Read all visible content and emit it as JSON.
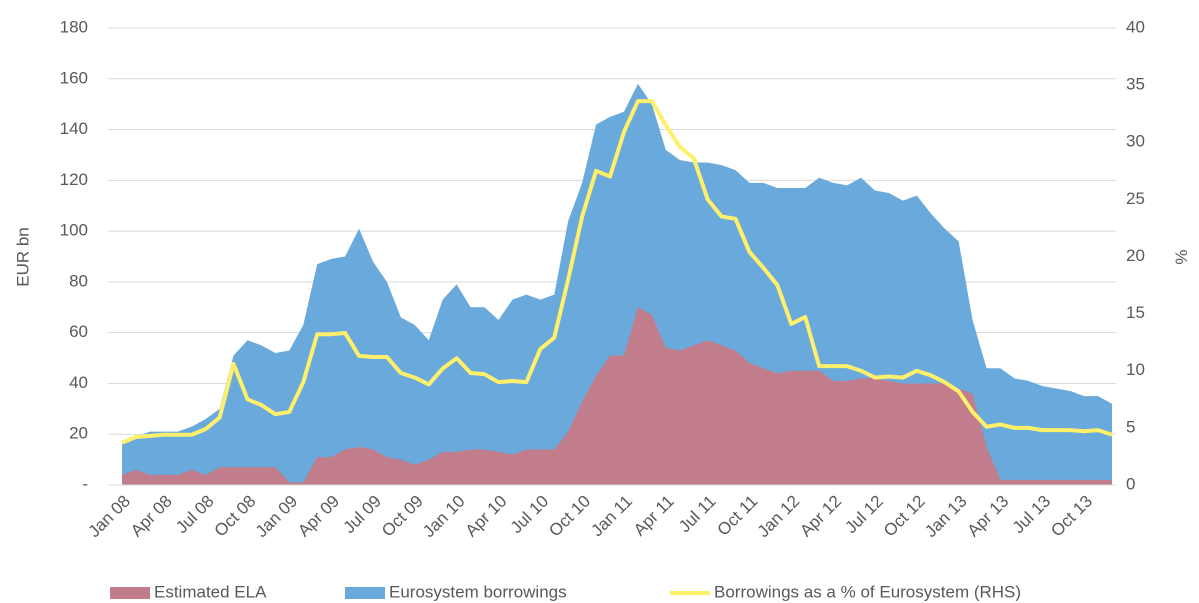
{
  "chart_data": {
    "type": "area",
    "categories": [
      "Jan 08",
      null,
      null,
      "Apr 08",
      null,
      null,
      "Jul 08",
      null,
      null,
      "Oct 08",
      null,
      null,
      "Jan 09",
      null,
      null,
      "Apr 09",
      null,
      null,
      "Jul 09",
      null,
      null,
      "Oct 09",
      null,
      null,
      "Jan 10",
      null,
      null,
      "Apr 10",
      null,
      null,
      "Jul 10",
      null,
      null,
      "Oct 10",
      null,
      null,
      "Jan 11",
      null,
      null,
      "Apr 11",
      null,
      null,
      "Jul 11",
      null,
      null,
      "Oct 11",
      null,
      null,
      "Jan 12",
      null,
      null,
      "Apr 12",
      null,
      null,
      "Jul 12",
      null,
      null,
      "Oct 12",
      null,
      null,
      "Jan 13",
      null,
      null,
      "Apr 13",
      null,
      null,
      "Jul 13",
      null,
      null,
      "Oct 13",
      null,
      null
    ],
    "series": [
      {
        "name": "Eurosystem borrowings",
        "type": "area",
        "color": "#6aa9dc",
        "values": [
          16,
          19,
          21,
          21,
          21,
          23,
          26,
          30,
          51,
          57,
          55,
          52,
          53,
          63,
          87,
          89,
          90,
          101,
          88,
          80,
          66,
          63,
          57,
          73,
          79,
          70,
          70,
          65,
          73,
          75,
          73,
          75,
          104,
          119,
          142,
          145,
          147,
          158,
          150,
          132,
          128,
          127,
          127,
          126,
          124,
          119,
          119,
          117,
          117,
          117,
          121,
          119,
          118,
          121,
          116,
          115,
          112,
          114,
          107,
          101,
          96,
          65,
          46,
          46,
          42,
          41,
          39,
          38,
          37,
          35,
          35,
          32
        ]
      },
      {
        "name": "Estimated ELA",
        "type": "area",
        "color": "#c27d8c",
        "values": [
          4,
          6,
          4,
          4,
          4,
          6,
          4,
          7,
          7,
          7,
          7,
          7,
          1,
          1,
          11,
          11,
          14,
          15,
          14,
          11,
          10,
          8,
          10,
          13,
          13,
          14,
          14,
          13,
          12,
          14,
          14,
          14,
          21,
          33,
          43,
          51,
          51,
          70,
          67,
          54,
          53,
          55,
          57,
          55,
          53,
          48,
          46,
          44,
          45,
          45,
          45,
          41,
          41,
          42,
          42,
          41,
          40,
          40,
          40,
          40,
          38,
          36,
          15,
          2,
          2,
          2,
          2,
          2,
          2,
          2,
          2,
          2
        ]
      },
      {
        "name": "Borrowings as a % of Eurosystem (RHS)",
        "type": "line",
        "axis": "y2",
        "color": "#ffef6b",
        "values": [
          3.7,
          4.2,
          4.3,
          4.4,
          4.4,
          4.4,
          4.9,
          5.9,
          10.6,
          7.5,
          7.0,
          6.2,
          6.4,
          9.0,
          13.2,
          13.2,
          13.3,
          11.3,
          11.2,
          11.2,
          9.8,
          9.4,
          8.8,
          10.2,
          11.1,
          9.8,
          9.7,
          9.0,
          9.1,
          9.0,
          11.9,
          12.9,
          18.0,
          23.5,
          27.5,
          27.0,
          30.9,
          33.6,
          33.6,
          31.5,
          29.6,
          28.6,
          25.0,
          23.5,
          23.3,
          20.4,
          19.0,
          17.5,
          14.1,
          14.7,
          10.4,
          10.4,
          10.4,
          10.0,
          9.4,
          9.5,
          9.4,
          10.0,
          9.6,
          9.0,
          8.2,
          6.4,
          5.1,
          5.3,
          5.0,
          5.0,
          4.8,
          4.8,
          4.8,
          4.7,
          4.8,
          4.4
        ]
      }
    ],
    "legend_order": [
      1,
      0,
      2
    ],
    "ylabel": "EUR bn",
    "y2label": "%",
    "ylim": [
      0,
      180
    ],
    "yticks": [
      {
        "value": 0,
        "label": "-"
      },
      20,
      40,
      60,
      80,
      100,
      120,
      140,
      160,
      180
    ],
    "y2lim": [
      0,
      40
    ],
    "y2ticks": [
      0,
      5,
      10,
      15,
      20,
      25,
      30,
      35,
      40
    ],
    "grid": true,
    "legend": "bottom"
  }
}
